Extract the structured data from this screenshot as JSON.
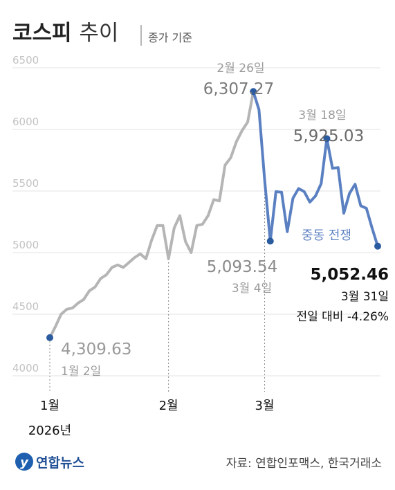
{
  "chart_data": {
    "type": "line",
    "title": "코스피 추이",
    "subtitle": "종가 기준",
    "categories": [
      "1월 2일",
      null,
      null,
      null,
      null,
      null,
      null,
      null,
      null,
      null,
      null,
      null,
      null,
      null,
      null,
      null,
      null,
      null,
      null,
      null,
      null,
      null,
      null,
      null,
      null,
      null,
      null,
      null,
      null,
      null,
      null,
      null,
      null,
      null,
      null,
      null,
      "2월 26일",
      null,
      null,
      "3월 4일",
      null,
      null,
      null,
      null,
      null,
      null,
      null,
      null,
      null,
      "3월 18일",
      null,
      null,
      null,
      null,
      null,
      null,
      null,
      null,
      "3월 31일"
    ],
    "series": [
      {
        "color": "#b5b5b5",
        "values": [
          4309.63,
          4400,
          4500,
          4540,
          4550,
          4590,
          4620,
          4690,
          4720,
          4790,
          4820,
          4880,
          4900,
          4880,
          4920,
          4960,
          4990,
          4950,
          5100,
          5220,
          5220,
          4950,
          5200,
          5300,
          5090,
          5000,
          5220,
          5230,
          5300,
          5430,
          5420,
          5710,
          5770,
          5900,
          5990,
          6060,
          6307.27,
          null,
          null,
          null,
          null,
          null,
          null,
          null,
          null,
          null,
          null,
          null,
          null,
          null,
          null,
          null,
          null,
          null,
          null,
          null,
          null,
          null,
          null
        ],
        "value_labels": [
          "4,309.63",
          null,
          null,
          null,
          null,
          null,
          null,
          null,
          null,
          null,
          null,
          null,
          null,
          null,
          null,
          null,
          null,
          null,
          null,
          null,
          null,
          null,
          null,
          null,
          null,
          null,
          null,
          null,
          null,
          null,
          null,
          null,
          null,
          null,
          null,
          null,
          "6,307.27",
          null,
          null,
          null,
          null,
          null,
          null,
          null,
          null,
          null,
          null,
          null,
          null,
          null,
          null,
          null,
          null,
          null,
          null,
          null,
          null,
          null,
          null
        ]
      },
      {
        "name": "중동 전쟁",
        "color": "#5b80c2",
        "values": [
          null,
          null,
          null,
          null,
          null,
          null,
          null,
          null,
          null,
          null,
          null,
          null,
          null,
          null,
          null,
          null,
          null,
          null,
          null,
          null,
          null,
          null,
          null,
          null,
          null,
          null,
          null,
          null,
          null,
          null,
          null,
          null,
          null,
          null,
          null,
          null,
          6307.27,
          6160,
          5590,
          5093.54,
          5495,
          5490,
          5170,
          5440,
          5520,
          5495,
          5410,
          5460,
          5560,
          5925.03,
          5685,
          5690,
          5320,
          5480,
          5555,
          5380,
          5360,
          5200,
          5052.46
        ],
        "value_labels": [
          null,
          null,
          null,
          null,
          null,
          null,
          null,
          null,
          null,
          null,
          null,
          null,
          null,
          null,
          null,
          null,
          null,
          null,
          null,
          null,
          null,
          null,
          null,
          null,
          null,
          null,
          null,
          null,
          null,
          null,
          null,
          null,
          null,
          null,
          null,
          null,
          null,
          null,
          null,
          "5,093.54",
          null,
          null,
          null,
          null,
          null,
          null,
          null,
          null,
          null,
          "5,925.03",
          null,
          null,
          null,
          null,
          null,
          null,
          null,
          null,
          "5,052.46"
        ]
      }
    ],
    "annotations": [
      {
        "text": "전일 대비 -4.26%"
      }
    ],
    "ylim": [
      4000,
      6500
    ],
    "yticks": [
      4000,
      4500,
      5000,
      5500,
      6000,
      6500
    ],
    "xticks": [
      {
        "value": 0,
        "label": "1월"
      },
      {
        "value": 21,
        "label": "2월"
      },
      {
        "value": 38,
        "label": "3월"
      }
    ],
    "xlabel": "2026년",
    "grid": true,
    "marker_color": "#2b5b9f",
    "source": "자료: 연합인포맥스, 한국거래소",
    "logo": "연합뉴스"
  }
}
